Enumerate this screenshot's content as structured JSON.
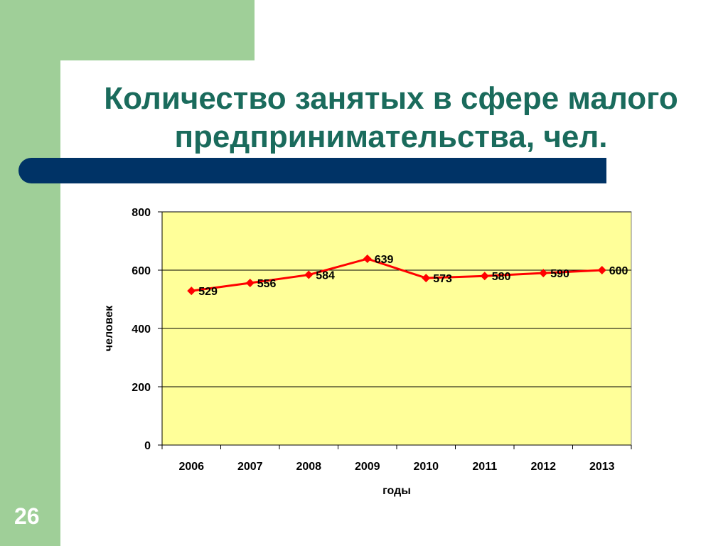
{
  "slide": {
    "title_line1": "Количество занятых в сфере малого",
    "title_line2": "предпринимательства, чел.",
    "number": "26"
  },
  "colors": {
    "green": "#9fcf98",
    "navy": "#003366",
    "title": "#1a6b5c",
    "plot_bg": "#ffff99",
    "series": "#ff0000"
  },
  "chart_data": {
    "type": "line",
    "title": "",
    "xlabel": "годы",
    "ylabel": "человек",
    "x": [
      "2006",
      "2007",
      "2008",
      "2009",
      "2010",
      "2011",
      "2012",
      "2013"
    ],
    "series": [
      {
        "values": [
          529,
          556,
          584,
          639,
          573,
          580,
          590,
          600
        ]
      }
    ],
    "ylim": [
      0,
      800
    ],
    "yticks": [
      0,
      200,
      400,
      600,
      800
    ],
    "grid": true,
    "legend": "none",
    "data_labels": true,
    "marker": "diamond"
  }
}
